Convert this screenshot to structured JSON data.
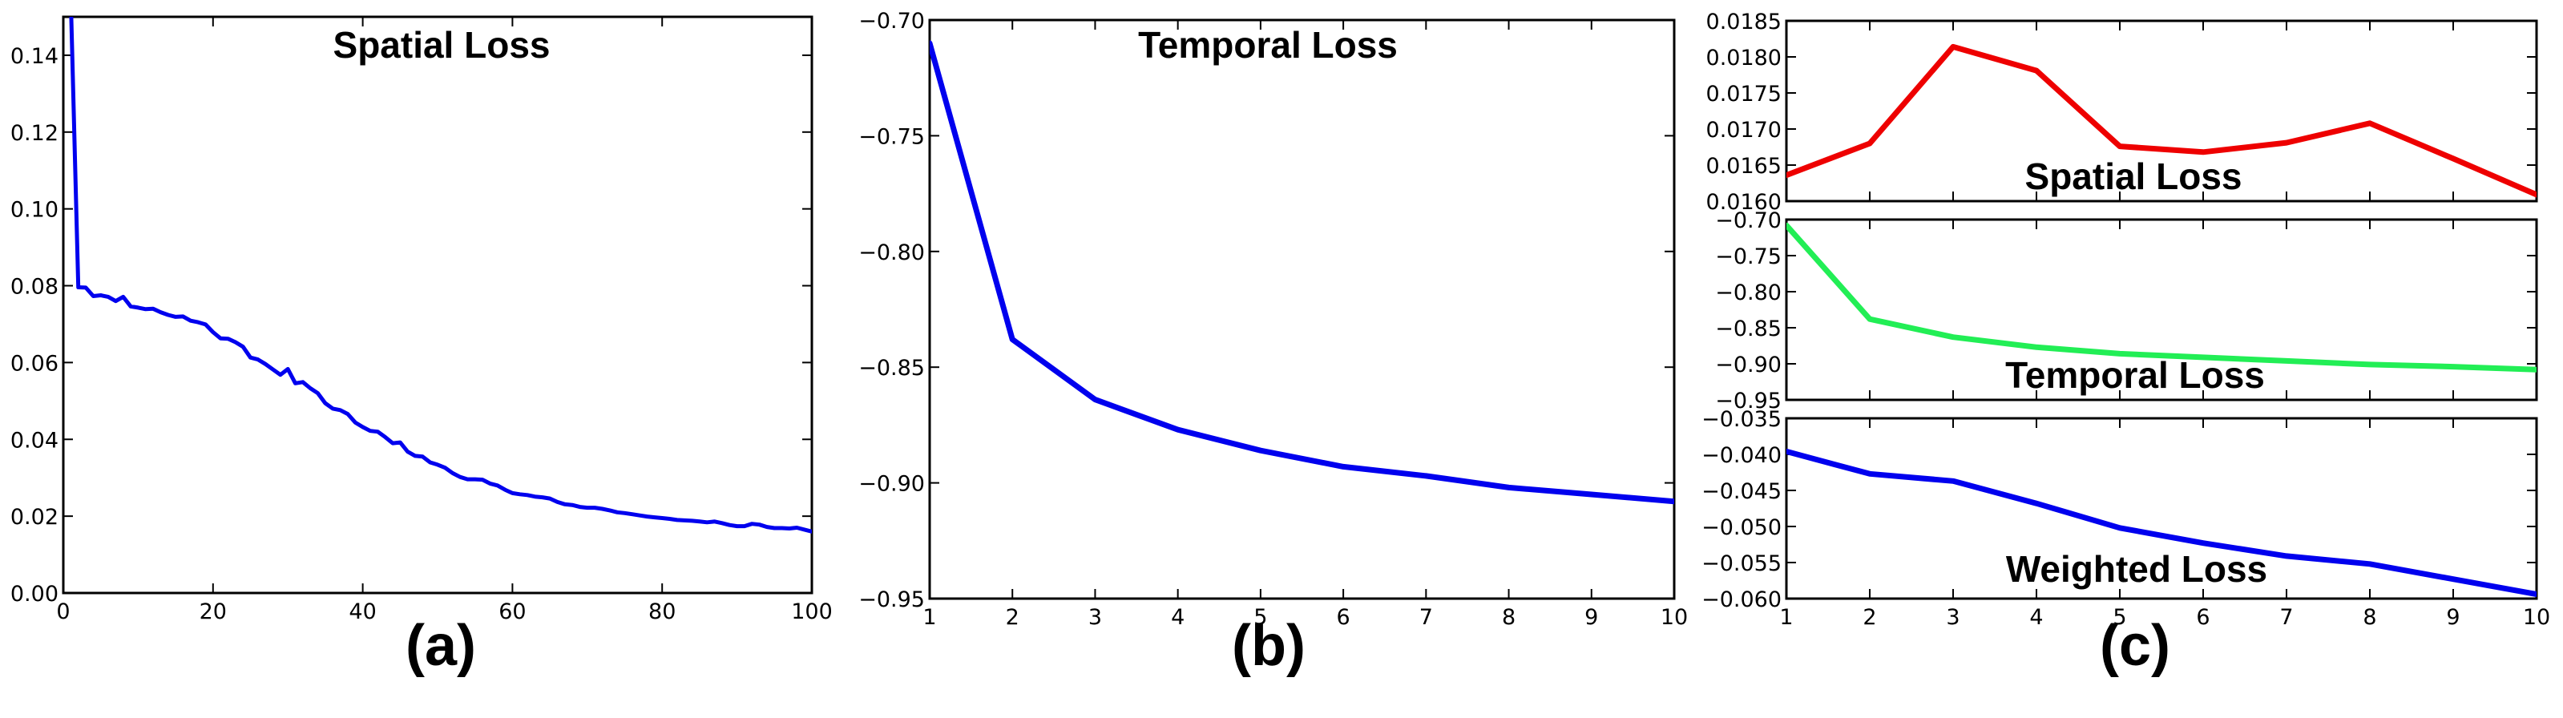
{
  "figure": {
    "panels": [
      {
        "id": "a",
        "label": "(a)"
      },
      {
        "id": "b",
        "label": "(b)"
      },
      {
        "id": "c",
        "label": "(c)"
      }
    ]
  },
  "colors": {
    "blue": "#0000ee",
    "red": "#ee0000",
    "green": "#22ee55",
    "axis": "#000000"
  },
  "chart_data": [
    {
      "panel": "(a)",
      "type": "line",
      "title": "Spatial Loss",
      "xlabel": "",
      "ylabel": "",
      "xlim": [
        0,
        100
      ],
      "ylim": [
        0.0,
        0.15
      ],
      "xticks": [
        0,
        20,
        40,
        60,
        80,
        100
      ],
      "xtick_labels": [
        "0",
        "20",
        "40",
        "60",
        "80",
        "100"
      ],
      "yticks": [
        0.0,
        0.02,
        0.04,
        0.06,
        0.08,
        0.1,
        0.12,
        0.14
      ],
      "ytick_labels": [
        "0.00",
        "0.02",
        "0.04",
        "0.06",
        "0.08",
        "0.10",
        "0.12",
        "0.14"
      ],
      "grid": false,
      "legend": null,
      "series": [
        {
          "name": "Spatial Loss",
          "color": "#0000ee",
          "x": [
            1,
            2,
            3,
            4,
            5,
            6,
            7,
            8,
            9,
            10,
            11,
            12,
            13,
            14,
            15,
            16,
            17,
            18,
            19,
            20,
            21,
            22,
            23,
            24,
            25,
            26,
            27,
            28,
            29,
            30,
            31,
            32,
            33,
            34,
            35,
            36,
            37,
            38,
            39,
            40,
            41,
            42,
            43,
            44,
            45,
            46,
            47,
            48,
            49,
            50,
            51,
            52,
            53,
            54,
            55,
            56,
            57,
            58,
            59,
            60,
            61,
            62,
            63,
            64,
            65,
            66,
            67,
            68,
            69,
            70,
            71,
            72,
            73,
            74,
            75,
            76,
            77,
            78,
            79,
            80,
            81,
            82,
            83,
            84,
            85,
            86,
            87,
            88,
            89,
            90,
            91,
            92,
            93,
            94,
            95,
            96,
            97,
            98,
            99,
            100
          ],
          "values": [
            0.155,
            0.0796,
            0.0795,
            0.0773,
            0.0775,
            0.0771,
            0.076,
            0.0771,
            0.0746,
            0.0743,
            0.0739,
            0.074,
            0.0731,
            0.0724,
            0.0719,
            0.072,
            0.0709,
            0.0705,
            0.0699,
            0.0679,
            0.0663,
            0.0662,
            0.0653,
            0.0641,
            0.0613,
            0.0608,
            0.0596,
            0.0582,
            0.0568,
            0.0583,
            0.0546,
            0.0549,
            0.0533,
            0.052,
            0.0494,
            0.048,
            0.0476,
            0.0466,
            0.0444,
            0.0432,
            0.0422,
            0.042,
            0.0406,
            0.039,
            0.0392,
            0.0368,
            0.0357,
            0.0355,
            0.034,
            0.0334,
            0.0326,
            0.0312,
            0.0302,
            0.0296,
            0.0296,
            0.0295,
            0.0285,
            0.028,
            0.0269,
            0.026,
            0.0257,
            0.0255,
            0.0251,
            0.0249,
            0.0246,
            0.0237,
            0.0231,
            0.0229,
            0.0224,
            0.0222,
            0.0222,
            0.0219,
            0.0215,
            0.021,
            0.0208,
            0.0205,
            0.0202,
            0.0199,
            0.0197,
            0.0195,
            0.0193,
            0.019,
            0.0189,
            0.0188,
            0.0186,
            0.0184,
            0.0186,
            0.0182,
            0.0177,
            0.0174,
            0.0174,
            0.018,
            0.0178,
            0.0172,
            0.0169,
            0.0169,
            0.0168,
            0.017,
            0.0165,
            0.016
          ]
        }
      ]
    },
    {
      "panel": "(b)",
      "type": "line",
      "title": "Temporal Loss",
      "xlabel": "",
      "ylabel": "",
      "xlim": [
        1,
        10
      ],
      "ylim": [
        -0.95,
        -0.7
      ],
      "xticks": [
        1,
        2,
        3,
        4,
        5,
        6,
        7,
        8,
        9,
        10
      ],
      "xtick_labels": [
        "1",
        "2",
        "3",
        "4",
        "5",
        "6",
        "7",
        "8",
        "9",
        "10"
      ],
      "yticks": [
        -0.95,
        -0.9,
        -0.85,
        -0.8,
        -0.75,
        -0.7
      ],
      "ytick_labels": [
        "−0.95",
        "−0.90",
        "−0.85",
        "−0.80",
        "−0.75",
        "−0.70"
      ],
      "grid": false,
      "legend": null,
      "series": [
        {
          "name": "Temporal Loss",
          "color": "#0000ee",
          "x": [
            1,
            2,
            3,
            4,
            5,
            6,
            7,
            8,
            9,
            10
          ],
          "values": [
            -0.71,
            -0.838,
            -0.864,
            -0.877,
            -0.886,
            -0.893,
            -0.897,
            -0.902,
            -0.905,
            -0.908
          ]
        }
      ]
    },
    {
      "panel": "(c)",
      "type": "line",
      "title": "Spatial Loss",
      "subplot": 1,
      "xlim": [
        1,
        10
      ],
      "ylim": [
        0.016,
        0.0185
      ],
      "xticks": [
        1,
        2,
        3,
        4,
        5,
        6,
        7,
        8,
        9,
        10
      ],
      "xtick_labels": [],
      "yticks": [
        0.016,
        0.0165,
        0.017,
        0.0175,
        0.018,
        0.0185
      ],
      "ytick_labels": [
        "0.0160",
        "0.0165",
        "0.0170",
        "0.0175",
        "0.0180",
        "0.0185"
      ],
      "grid": false,
      "legend": null,
      "series": [
        {
          "name": "Spatial Loss",
          "color": "#ee0000",
          "x": [
            1,
            2,
            3,
            4,
            5,
            6,
            7,
            8,
            9,
            10
          ],
          "values": [
            0.01636,
            0.0168,
            0.01814,
            0.01781,
            0.01676,
            0.01668,
            0.01681,
            0.01708,
            0.01659,
            0.01609
          ]
        }
      ]
    },
    {
      "panel": "(c)",
      "type": "line",
      "title": "Temporal Loss",
      "subplot": 2,
      "xlim": [
        1,
        10
      ],
      "ylim": [
        -0.95,
        -0.7
      ],
      "xticks": [
        1,
        2,
        3,
        4,
        5,
        6,
        7,
        8,
        9,
        10
      ],
      "xtick_labels": [],
      "yticks": [
        -0.95,
        -0.9,
        -0.85,
        -0.8,
        -0.75,
        -0.7
      ],
      "ytick_labels": [
        "−0.95",
        "−0.90",
        "−0.85",
        "−0.80",
        "−0.75",
        "−0.70"
      ],
      "grid": false,
      "legend": null,
      "series": [
        {
          "name": "Temporal Loss",
          "color": "#22ee55",
          "x": [
            1,
            2,
            3,
            4,
            5,
            6,
            7,
            8,
            9,
            10
          ],
          "values": [
            -0.708,
            -0.838,
            -0.863,
            -0.877,
            -0.886,
            -0.891,
            -0.896,
            -0.901,
            -0.904,
            -0.908
          ]
        }
      ]
    },
    {
      "panel": "(c)",
      "type": "line",
      "title": "Weighted Loss",
      "subplot": 3,
      "xlim": [
        1,
        10
      ],
      "ylim": [
        -0.06,
        -0.035
      ],
      "xticks": [
        1,
        2,
        3,
        4,
        5,
        6,
        7,
        8,
        9,
        10
      ],
      "xtick_labels": [
        "1",
        "2",
        "3",
        "4",
        "5",
        "6",
        "7",
        "8",
        "9",
        "10"
      ],
      "yticks": [
        -0.06,
        -0.055,
        -0.05,
        -0.045,
        -0.04,
        -0.035
      ],
      "ytick_labels": [
        "−0.060",
        "−0.055",
        "−0.050",
        "−0.045",
        "−0.040",
        "−0.035"
      ],
      "grid": false,
      "legend": null,
      "series": [
        {
          "name": "Weighted Loss",
          "color": "#0000ee",
          "x": [
            1,
            2,
            3,
            4,
            5,
            6,
            7,
            8,
            9,
            10
          ],
          "values": [
            -0.0396,
            -0.0427,
            -0.0437,
            -0.0468,
            -0.0502,
            -0.0523,
            -0.0541,
            -0.0552,
            -0.0573,
            -0.0594
          ]
        }
      ]
    }
  ]
}
